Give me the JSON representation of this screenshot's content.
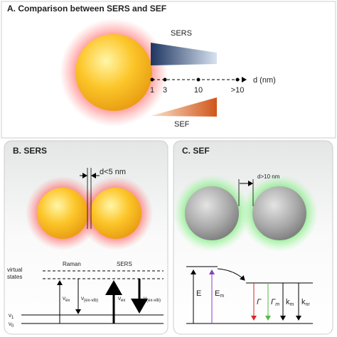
{
  "panel_a": {
    "title": "A.  Comparison between SERS and SEF",
    "sers_label": "SERS",
    "sef_label": "SEF",
    "axis_label": "d (nm)",
    "ticks": [
      "1",
      "3",
      "10",
      ">10"
    ]
  },
  "panel_b": {
    "title": "B. SERS",
    "gap_label": "d<5 nm",
    "raman_label": "Raman",
    "sers_label": "SERS",
    "virtual_states": [
      "virtual",
      "states"
    ],
    "levels": [
      {
        "base": "ν",
        "sub": "1"
      },
      {
        "base": "ν",
        "sub": "0"
      }
    ],
    "transitions": [
      {
        "base": "ν",
        "sub": "ex"
      },
      {
        "base": "ν",
        "sub": "(ex-vib)"
      },
      {
        "base": "ν",
        "sub": "ex"
      },
      {
        "base": "ν",
        "sub": "(ex-vib)"
      }
    ]
  },
  "panel_c": {
    "title": "C. SEF",
    "gap_label": "d>10 nm",
    "transitions": [
      {
        "base": "E"
      },
      {
        "base": "E",
        "sub": "m"
      },
      {
        "base": "Γ"
      },
      {
        "base": "Γ",
        "sub": "m"
      },
      {
        "base": "k",
        "sub": "m"
      },
      {
        "base": "k",
        "sub": "nr"
      }
    ]
  }
}
